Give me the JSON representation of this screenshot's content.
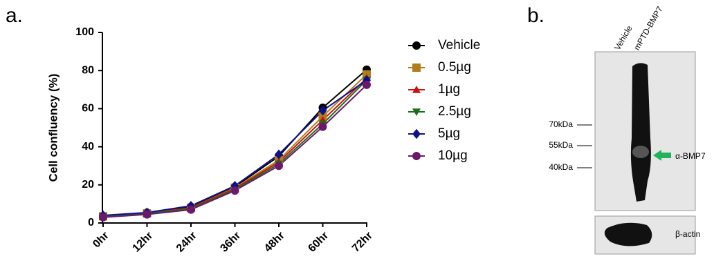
{
  "chart_data": {
    "type": "line",
    "y_label": "Cell confluency (%)",
    "categories": [
      "0hr",
      "12hr",
      "24hr",
      "36hr",
      "48hr",
      "60hr",
      "72hr"
    ],
    "ylim": [
      0,
      100
    ],
    "yticks": [
      0,
      20,
      40,
      60,
      80,
      100
    ],
    "series": [
      {
        "name": "Vehicle",
        "color": "#000000",
        "marker": "circle",
        "values": [
          3.5,
          5.5,
          8.5,
          19,
          35,
          60.5,
          80.5
        ]
      },
      {
        "name": "0.5µg",
        "color": "#b07d1a",
        "marker": "square",
        "values": [
          3.5,
          5,
          8,
          18.5,
          33,
          56,
          78
        ]
      },
      {
        "name": "1µg",
        "color": "#cc1111",
        "marker": "triangle-up",
        "values": [
          3.5,
          5,
          8,
          18,
          32,
          54,
          76
        ]
      },
      {
        "name": "2.5µg",
        "color": "#1a6e1a",
        "marker": "triangle-down",
        "values": [
          3.5,
          5,
          7.5,
          17.5,
          31,
          52,
          75
        ]
      },
      {
        "name": "5µg",
        "color": "#10108b",
        "marker": "diamond",
        "values": [
          4,
          5.5,
          9,
          19.5,
          36,
          59,
          75
        ]
      },
      {
        "name": "10µg",
        "color": "#6b1a6b",
        "marker": "circle",
        "values": [
          3,
          4.5,
          7,
          17,
          30,
          50.5,
          72.5
        ]
      }
    ]
  },
  "panel_a": {
    "label": "a."
  },
  "panel_b": {
    "label": "b.",
    "lanes": [
      "Vehicle",
      "mPTD-BMP7"
    ],
    "size_markers": [
      "70kDa",
      "55kDa",
      "40kDa"
    ],
    "band_label": "α-BMP7",
    "loading_label": "β-actin"
  }
}
